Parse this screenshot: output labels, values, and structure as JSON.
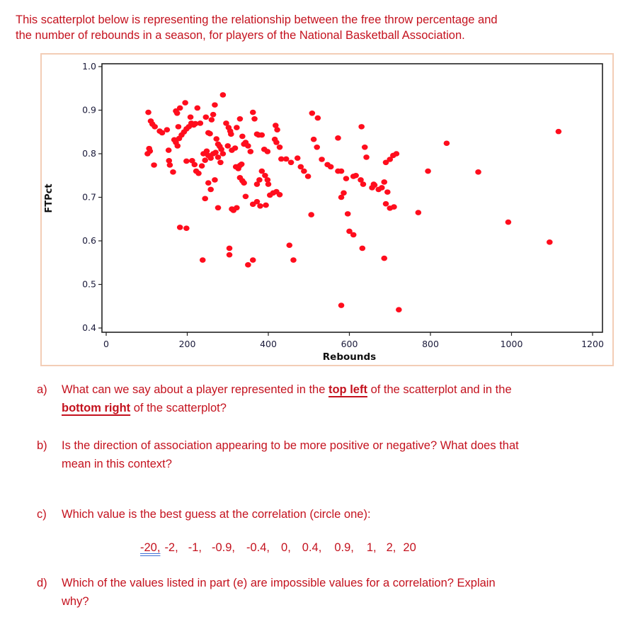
{
  "intro": {
    "line1": "This scatterplot below is representing the relationship between the free throw percentage and",
    "line2": "the number of rebounds in a season, for players of the National Basketball Association."
  },
  "chart_data": {
    "type": "scatter",
    "title": "",
    "xlabel": "Rebounds",
    "ylabel": "FTPct",
    "xlim": [
      -10,
      1220
    ],
    "ylim": [
      0.4,
      1.0
    ],
    "x_ticks": [
      "0",
      "200",
      "400",
      "600",
      "800",
      "1000",
      "1200"
    ],
    "y_ticks": [
      "0.4",
      "0.5",
      "0.6",
      "0.7",
      "0.8",
      "0.9",
      "1.0"
    ],
    "grid": false,
    "legend": null,
    "marker_color": "#ff0d1d",
    "points": [
      [
        104,
        0.895
      ],
      [
        110,
        0.875
      ],
      [
        114,
        0.868
      ],
      [
        120,
        0.862
      ],
      [
        102,
        0.8
      ],
      [
        108,
        0.806
      ],
      [
        106,
        0.812
      ],
      [
        118,
        0.774
      ],
      [
        132,
        0.852
      ],
      [
        138,
        0.848
      ],
      [
        150,
        0.855
      ],
      [
        154,
        0.808
      ],
      [
        155,
        0.784
      ],
      [
        157,
        0.774
      ],
      [
        165,
        0.758
      ],
      [
        172,
        0.898
      ],
      [
        175,
        0.893
      ],
      [
        182,
        0.905
      ],
      [
        178,
        0.862
      ],
      [
        168,
        0.832
      ],
      [
        172,
        0.826
      ],
      [
        176,
        0.818
      ],
      [
        180,
        0.835
      ],
      [
        186,
        0.843
      ],
      [
        192,
        0.85
      ],
      [
        198,
        0.857
      ],
      [
        204,
        0.862
      ],
      [
        210,
        0.87
      ],
      [
        195,
        0.917
      ],
      [
        208,
        0.884
      ],
      [
        216,
        0.866
      ],
      [
        220,
        0.869
      ],
      [
        225,
        0.905
      ],
      [
        232,
        0.87
      ],
      [
        198,
        0.783
      ],
      [
        212,
        0.784
      ],
      [
        218,
        0.775
      ],
      [
        222,
        0.76
      ],
      [
        228,
        0.755
      ],
      [
        236,
        0.772
      ],
      [
        244,
        0.785
      ],
      [
        240,
        0.8
      ],
      [
        248,
        0.806
      ],
      [
        252,
        0.796
      ],
      [
        258,
        0.79
      ],
      [
        264,
        0.8
      ],
      [
        270,
        0.803
      ],
      [
        276,
        0.792
      ],
      [
        282,
        0.78
      ],
      [
        246,
        0.884
      ],
      [
        252,
        0.848
      ],
      [
        256,
        0.846
      ],
      [
        260,
        0.878
      ],
      [
        264,
        0.89
      ],
      [
        268,
        0.912
      ],
      [
        272,
        0.834
      ],
      [
        276,
        0.822
      ],
      [
        280,
        0.817
      ],
      [
        284,
        0.81
      ],
      [
        288,
        0.8
      ],
      [
        252,
        0.733
      ],
      [
        258,
        0.718
      ],
      [
        268,
        0.74
      ],
      [
        244,
        0.697
      ],
      [
        276,
        0.676
      ],
      [
        288,
        0.935
      ],
      [
        296,
        0.87
      ],
      [
        302,
        0.86
      ],
      [
        306,
        0.852
      ],
      [
        308,
        0.845
      ],
      [
        300,
        0.818
      ],
      [
        310,
        0.808
      ],
      [
        318,
        0.813
      ],
      [
        320,
        0.77
      ],
      [
        326,
        0.766
      ],
      [
        330,
        0.773
      ],
      [
        334,
        0.776
      ],
      [
        330,
        0.745
      ],
      [
        336,
        0.738
      ],
      [
        340,
        0.733
      ],
      [
        322,
        0.86
      ],
      [
        330,
        0.88
      ],
      [
        336,
        0.84
      ],
      [
        340,
        0.822
      ],
      [
        344,
        0.826
      ],
      [
        350,
        0.818
      ],
      [
        356,
        0.805
      ],
      [
        344,
        0.702
      ],
      [
        362,
        0.895
      ],
      [
        366,
        0.88
      ],
      [
        372,
        0.845
      ],
      [
        376,
        0.843
      ],
      [
        384,
        0.843
      ],
      [
        378,
        0.74
      ],
      [
        372,
        0.73
      ],
      [
        310,
        0.673
      ],
      [
        314,
        0.67
      ],
      [
        322,
        0.676
      ],
      [
        182,
        0.631
      ],
      [
        198,
        0.629
      ],
      [
        238,
        0.556
      ],
      [
        304,
        0.583
      ],
      [
        304,
        0.568
      ],
      [
        350,
        0.545
      ],
      [
        362,
        0.556
      ],
      [
        390,
        0.81
      ],
      [
        398,
        0.805
      ],
      [
        384,
        0.76
      ],
      [
        392,
        0.75
      ],
      [
        398,
        0.74
      ],
      [
        400,
        0.73
      ],
      [
        404,
        0.705
      ],
      [
        412,
        0.71
      ],
      [
        420,
        0.713
      ],
      [
        428,
        0.706
      ],
      [
        394,
        0.682
      ],
      [
        380,
        0.68
      ],
      [
        372,
        0.69
      ],
      [
        362,
        0.684
      ],
      [
        418,
        0.865
      ],
      [
        422,
        0.855
      ],
      [
        416,
        0.833
      ],
      [
        420,
        0.826
      ],
      [
        428,
        0.815
      ],
      [
        432,
        0.788
      ],
      [
        444,
        0.788
      ],
      [
        456,
        0.78
      ],
      [
        472,
        0.79
      ],
      [
        480,
        0.77
      ],
      [
        488,
        0.76
      ],
      [
        498,
        0.748
      ],
      [
        452,
        0.59
      ],
      [
        462,
        0.556
      ],
      [
        506,
        0.66
      ],
      [
        508,
        0.893
      ],
      [
        522,
        0.882
      ],
      [
        512,
        0.833
      ],
      [
        520,
        0.815
      ],
      [
        532,
        0.787
      ],
      [
        546,
        0.775
      ],
      [
        554,
        0.77
      ],
      [
        572,
        0.76
      ],
      [
        580,
        0.76
      ],
      [
        592,
        0.743
      ],
      [
        610,
        0.748
      ],
      [
        616,
        0.75
      ],
      [
        628,
        0.74
      ],
      [
        634,
        0.73
      ],
      [
        660,
        0.73
      ],
      [
        690,
        0.78
      ],
      [
        700,
        0.787
      ],
      [
        708,
        0.796
      ],
      [
        716,
        0.8
      ],
      [
        572,
        0.836
      ],
      [
        580,
        0.7
      ],
      [
        586,
        0.71
      ],
      [
        630,
        0.862
      ],
      [
        638,
        0.815
      ],
      [
        642,
        0.792
      ],
      [
        596,
        0.662
      ],
      [
        600,
        0.622
      ],
      [
        610,
        0.614
      ],
      [
        632,
        0.583
      ],
      [
        580,
        0.452
      ],
      [
        656,
        0.722
      ],
      [
        662,
        0.728
      ],
      [
        672,
        0.718
      ],
      [
        680,
        0.722
      ],
      [
        686,
        0.735
      ],
      [
        694,
        0.712
      ],
      [
        690,
        0.685
      ],
      [
        700,
        0.675
      ],
      [
        710,
        0.678
      ],
      [
        686,
        0.56
      ],
      [
        722,
        0.442
      ],
      [
        770,
        0.665
      ],
      [
        794,
        0.76
      ],
      [
        840,
        0.824
      ],
      [
        918,
        0.758
      ],
      [
        992,
        0.643
      ],
      [
        1094,
        0.597
      ],
      [
        1116,
        0.851
      ]
    ]
  },
  "questions": {
    "a": {
      "label": "a)",
      "pre": "What can we say about a player represented in the ",
      "em1": "top left",
      "mid": " of the scatterplot and in the",
      "em2": "bottom right",
      "post": " of the scatterplot?"
    },
    "b": {
      "label": "b)",
      "line1": "Is the direction of association appearing to be more positive or negative? What does that",
      "line2": "mean in this context?"
    },
    "c": {
      "label": "c)",
      "text": "Which value is the best guess at the correlation (circle one):",
      "options": [
        "-20,",
        "-2,",
        "-1,",
        "-0.9,",
        "-0.4,",
        "0,",
        "0.4,",
        "0.9,",
        "1,",
        "2,",
        "20"
      ]
    },
    "d": {
      "label": "d)",
      "line1": "Which of the values listed in part (e) are impossible values for a correlation? Explain",
      "line2": "why?"
    }
  }
}
